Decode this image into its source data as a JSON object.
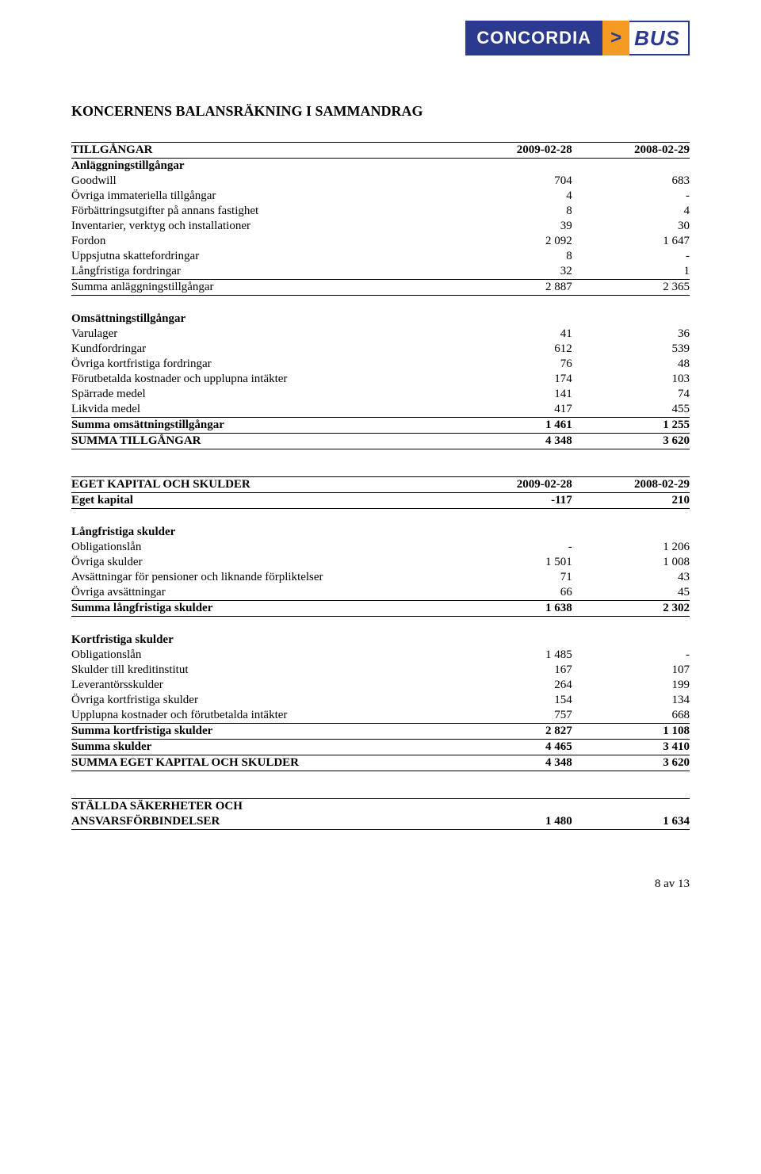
{
  "logo": {
    "brand": "CONCORDIA",
    "chev": ">",
    "unit": "BUS"
  },
  "title": "KONCERNENS BALANSRÄKNING I SAMMANDRAG",
  "colhead": {
    "c1": "2009-02-28",
    "c2": "2008-02-29"
  },
  "assets": {
    "header": "TILLGÅNGAR",
    "fixed_header": "Anläggningstillgångar",
    "rows1": [
      {
        "l": "Goodwill",
        "a": "704",
        "b": "683"
      },
      {
        "l": "Övriga immateriella tillgångar",
        "a": "4",
        "b": "-"
      },
      {
        "l": "Förbättringsutgifter på annans fastighet",
        "a": "8",
        "b": "4"
      },
      {
        "l": "Inventarier, verktyg och installationer",
        "a": "39",
        "b": "30"
      },
      {
        "l": "Fordon",
        "a": "2 092",
        "b": "1 647"
      },
      {
        "l": "Uppsjutna skattefordringar",
        "a": "8",
        "b": "-"
      },
      {
        "l": "Långfristiga fordringar",
        "a": "32",
        "b": "1"
      }
    ],
    "sum_fixed": {
      "l": "Summa anläggningstillgångar",
      "a": "2 887",
      "b": "2 365"
    },
    "curr_header": "Omsättningstillgångar",
    "rows2": [
      {
        "l": "Varulager",
        "a": "41",
        "b": "36"
      },
      {
        "l": "Kundfordringar",
        "a": "612",
        "b": "539"
      },
      {
        "l": "Övriga kortfristiga fordringar",
        "a": "76",
        "b": "48"
      },
      {
        "l": "Förutbetalda kostnader och upplupna intäkter",
        "a": "174",
        "b": "103"
      },
      {
        "l": "Spärrade medel",
        "a": "141",
        "b": "74"
      },
      {
        "l": "Likvida medel",
        "a": "417",
        "b": "455"
      }
    ],
    "sum_curr": {
      "l": "Summa omsättningstillgångar",
      "a": "1 461",
      "b": "1 255"
    },
    "total": {
      "l": "SUMMA TILLGÅNGAR",
      "a": "4 348",
      "b": "3 620"
    }
  },
  "eqliab": {
    "header": "EGET KAPITAL OCH SKULDER",
    "equity": {
      "l": "Eget kapital",
      "a": "-117",
      "b": "210"
    },
    "lt_header": "Långfristiga skulder",
    "lt_rows": [
      {
        "l": "Obligationslån",
        "a": "-",
        "b": "1 206"
      },
      {
        "l": "Övriga skulder",
        "a": "1 501",
        "b": "1 008"
      },
      {
        "l": "Avsättningar för pensioner och liknande förpliktelser",
        "a": "71",
        "b": "43"
      },
      {
        "l": "Övriga avsättningar",
        "a": "66",
        "b": "45"
      }
    ],
    "sum_lt": {
      "l": "Summa långfristiga skulder",
      "a": "1 638",
      "b": "2 302"
    },
    "st_header": "Kortfristiga skulder",
    "st_rows": [
      {
        "l": "Obligationslån",
        "a": "1 485",
        "b": "-"
      },
      {
        "l": "Skulder till kreditinstitut",
        "a": "167",
        "b": "107"
      },
      {
        "l": "Leverantörsskulder",
        "a": "264",
        "b": "199"
      },
      {
        "l": "Övriga kortfristiga skulder",
        "a": "154",
        "b": "134"
      },
      {
        "l": "Upplupna kostnader och förutbetalda intäkter",
        "a": "757",
        "b": "668"
      }
    ],
    "sum_st": {
      "l": "Summa kortfristiga skulder",
      "a": "2 827",
      "b": "1 108"
    },
    "sum_liab": {
      "l": "Summa skulder",
      "a": "4 465",
      "b": "3 410"
    },
    "total": {
      "l": "SUMMA EGET KAPITAL OCH SKULDER",
      "a": "4 348",
      "b": "3 620"
    }
  },
  "pledge": {
    "l1": "STÄLLDA SÄKERHETER OCH",
    "l2": "ANSVARSFÖRBINDELSER",
    "a": "1 480",
    "b": "1 634"
  },
  "pagenum": "8 av 13"
}
